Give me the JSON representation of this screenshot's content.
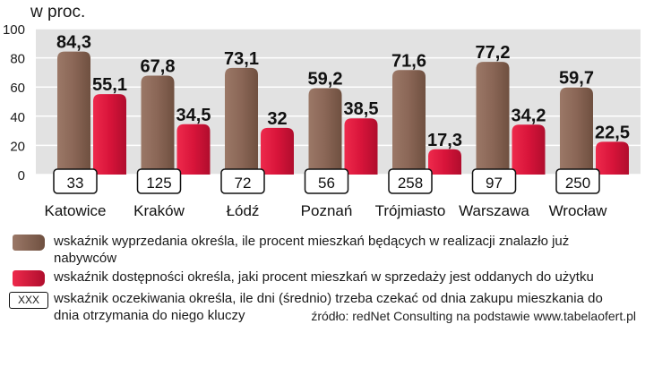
{
  "chart_data": {
    "type": "bar",
    "unit_label": "w proc.",
    "yticks": [
      0,
      20,
      40,
      60,
      80,
      100
    ],
    "ylim": [
      0,
      100
    ],
    "categories": [
      "Katowice",
      "Kraków",
      "Łódź",
      "Poznań",
      "Trójmiasto",
      "Warszawa",
      "Wrocław"
    ],
    "series": [
      {
        "name": "wskaźnik wyprzedania określa, ile procent mieszkań będących w realizacji znalazło już nabywców",
        "color": "#8a6656",
        "values": [
          84.3,
          67.8,
          73.1,
          59.2,
          71.6,
          77.2,
          59.7
        ],
        "labels": [
          "84,3",
          "67,8",
          "73,1",
          "59,2",
          "71,6",
          "77,2",
          "59,7"
        ]
      },
      {
        "name": "wskaźnik dostępności określa, jaki procent mieszkań w sprzedaży jest oddanych do użytku",
        "color": "#d8143a",
        "values": [
          55.1,
          34.5,
          32,
          38.5,
          17.3,
          34.2,
          22.5
        ],
        "labels": [
          "55,1",
          "34,5",
          "32",
          "38,5",
          "17,3",
          "34,2",
          "22,5"
        ]
      }
    ],
    "days_series": {
      "name": "wskaźnik oczekiwania określa, ile dni (średnio) trzeba czekać od dnia zakupu mieszkania do dnia otrzymania do niego kluczy",
      "values": [
        33,
        125,
        72,
        56,
        258,
        97,
        250
      ]
    }
  },
  "legend": {
    "row1": "wskaźnik wyprzedania określa, ile procent mieszkań będących w realizacji znalazło już",
    "row1b": "nabywców",
    "row2": "wskaźnik dostępności określa, jaki procent mieszkań w sprzedaży jest oddanych do użytku",
    "row3": "wskaźnik oczekiwania określa, ile dni (średnio) trzeba czekać od dnia zakupu mieszkania do",
    "row3b": "dnia otrzymania do niego kluczy",
    "box_label": "XXX"
  },
  "source": "źródło: redNet Consulting na podstawie www.tabelaofert.pl"
}
